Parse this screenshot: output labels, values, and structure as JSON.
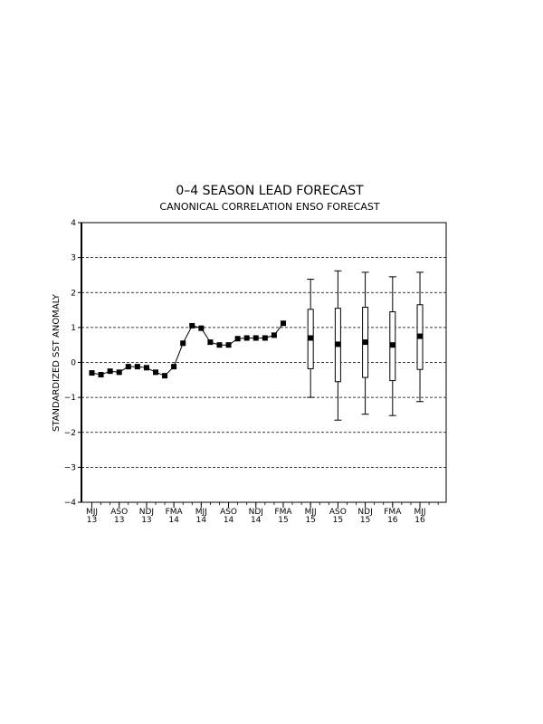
{
  "chart_data": {
    "type": "line",
    "title": "0–4 SEASON LEAD FORECAST",
    "subtitle": "CANONICAL CORRELATION ENSO FORECAST",
    "ylabel": "STANDARDIZED SST ANOMALY",
    "xlabel": "",
    "ylim": [
      -4,
      4
    ],
    "yticks": [
      "4",
      "3",
      "2",
      "1",
      "0",
      "−1",
      "−2",
      "−3",
      "−4"
    ],
    "grid": "dashed horizontal lines at integer y values",
    "xtick_labels": [
      {
        "season": "MJJ",
        "year": "13"
      },
      {
        "season": "ASO",
        "year": "13"
      },
      {
        "season": "NDJ",
        "year": "13"
      },
      {
        "season": "FMA",
        "year": "14"
      },
      {
        "season": "MJJ",
        "year": "14"
      },
      {
        "season": "ASO",
        "year": "14"
      },
      {
        "season": "NDJ",
        "year": "14"
      },
      {
        "season": "FMA",
        "year": "15"
      },
      {
        "season": "MJJ",
        "year": "15"
      },
      {
        "season": "ASO",
        "year": "15"
      },
      {
        "season": "NDJ",
        "year": "15"
      },
      {
        "season": "FMA",
        "year": "16"
      },
      {
        "season": "MJJ",
        "year": "16"
      }
    ],
    "observed": {
      "seasons": [
        "MJJ 13",
        "JJA 13",
        "JAS 13",
        "ASO 13",
        "SON 13",
        "OND 13",
        "NDJ 13",
        "DJF 14",
        "JFM 14",
        "FMA 14",
        "MAM 14",
        "AMJ 14",
        "MJJ 14",
        "JJA 14",
        "JAS 14",
        "ASO 14",
        "SON 14",
        "OND 14",
        "NDJ 14",
        "DJF 15",
        "JFM 15",
        "FMA 15"
      ],
      "values": [
        -0.3,
        -0.35,
        -0.25,
        -0.28,
        -0.12,
        -0.12,
        -0.15,
        -0.28,
        -0.38,
        -0.12,
        0.55,
        1.05,
        0.98,
        0.58,
        0.5,
        0.5,
        0.68,
        0.7,
        0.7,
        0.7,
        0.78,
        1.12
      ]
    },
    "forecast": {
      "seasons": [
        "MJJ 15",
        "ASO 15",
        "NDJ 15",
        "FMA 16",
        "MJJ 16"
      ],
      "values": [
        0.7,
        0.52,
        0.58,
        0.5,
        0.75
      ],
      "box_low": [
        -0.18,
        -0.55,
        -0.43,
        -0.52,
        -0.2
      ],
      "box_high": [
        1.52,
        1.55,
        1.58,
        1.45,
        1.65
      ],
      "whisker_low": [
        -1.0,
        -1.65,
        -1.48,
        -1.52,
        -1.12
      ],
      "whisker_high": [
        2.38,
        2.62,
        2.58,
        2.45,
        2.58
      ]
    }
  }
}
